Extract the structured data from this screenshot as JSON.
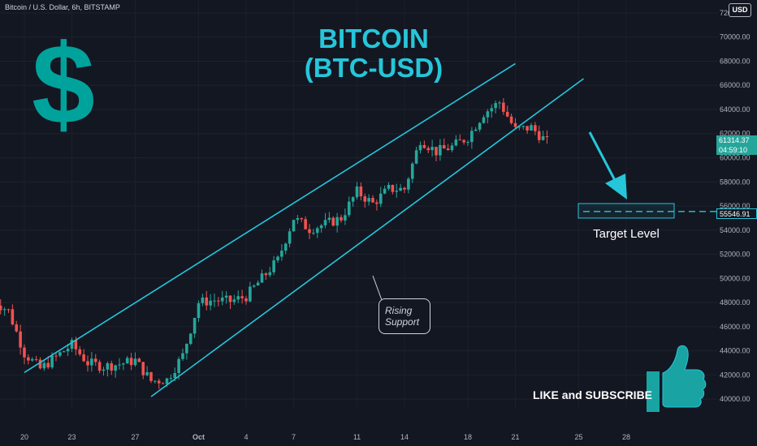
{
  "header": {
    "symbol_line": "Bitcoin / U.S. Dollar, 6h, BITSTAMP",
    "currency_badge": "USD"
  },
  "title": {
    "line1": "BITCOIN",
    "line2": "(BTC-USD)"
  },
  "dollar_sign": "$",
  "annotations": {
    "rising_support_line1": "Rising",
    "rising_support_line2": "Support",
    "target_level": "Target Level",
    "like_subscribe": "LIKE and SUBSCRIBE"
  },
  "price_tags": {
    "last_price": "61314.37",
    "countdown": "04:59:10",
    "target_price": "55546.91"
  },
  "colors": {
    "background": "#131722",
    "up": "#26a69a",
    "down": "#ef5350",
    "channel": "#26c6da",
    "accent_teal": "#00a39c"
  },
  "icons": {
    "thumb": "thumbs-up-icon",
    "arrow": "down-arrow-icon"
  },
  "chart_data": {
    "type": "candlestick",
    "timeframe": "6h",
    "yaxis_ticks": [
      40000,
      42000,
      44000,
      46000,
      48000,
      50000,
      52000,
      54000,
      56000,
      58000,
      60000,
      62000,
      64000,
      66000,
      68000,
      70000,
      72000
    ],
    "ylim": [
      39200,
      72400
    ],
    "xaxis_ticks": [
      "20",
      "23",
      "27",
      "Oct",
      "4",
      "7",
      "11",
      "14",
      "18",
      "21",
      "25",
      "28"
    ],
    "x_dates": [
      "2021-09-20",
      "2021-09-23",
      "2021-09-27",
      "2021-10-01",
      "2021-10-04",
      "2021-10-07",
      "2021-10-11",
      "2021-10-14",
      "2021-10-18",
      "2021-10-21",
      "2021-10-25",
      "2021-10-28"
    ],
    "approx_close_path": [
      [
        "2021-09-18",
        48200
      ],
      [
        "2021-09-19",
        47300
      ],
      [
        "2021-09-20",
        43800
      ],
      [
        "2021-09-21",
        42500
      ],
      [
        "2021-09-22",
        43500
      ],
      [
        "2021-09-23",
        44500
      ],
      [
        "2021-09-24",
        43000
      ],
      [
        "2021-09-25",
        42700
      ],
      [
        "2021-09-26",
        42900
      ],
      [
        "2021-09-27",
        43200
      ],
      [
        "2021-09-28",
        41500
      ],
      [
        "2021-09-29",
        41600
      ],
      [
        "2021-09-30",
        43600
      ],
      [
        "2021-10-01",
        48000
      ],
      [
        "2021-10-02",
        48200
      ],
      [
        "2021-10-03",
        48100
      ],
      [
        "2021-10-04",
        48500
      ],
      [
        "2021-10-05",
        50000
      ],
      [
        "2021-10-06",
        51500
      ],
      [
        "2021-10-07",
        55000
      ],
      [
        "2021-10-08",
        54100
      ],
      [
        "2021-10-09",
        54500
      ],
      [
        "2021-10-10",
        55000
      ],
      [
        "2021-10-11",
        57200
      ],
      [
        "2021-10-12",
        56200
      ],
      [
        "2021-10-13",
        57400
      ],
      [
        "2021-10-14",
        57400
      ],
      [
        "2021-10-15",
        61500
      ],
      [
        "2021-10-16",
        60500
      ],
      [
        "2021-10-17",
        60900
      ],
      [
        "2021-10-18",
        61700
      ],
      [
        "2021-10-19",
        63700
      ],
      [
        "2021-10-20",
        64600
      ],
      [
        "2021-10-21",
        62300
      ],
      [
        "2021-10-22",
        62500
      ],
      [
        "2021-10-23",
        61300
      ]
    ],
    "channel_upper": [
      [
        "2021-09-20",
        42200
      ],
      [
        "2021-10-21",
        67800
      ]
    ],
    "channel_lower": [
      [
        "2021-09-28",
        40200
      ],
      [
        "2021-10-23",
        64000
      ]
    ],
    "last_price": 61314.37,
    "target_price": 55546.91,
    "target_box": {
      "x_range": [
        "2021-10-23",
        "2021-10-26"
      ],
      "y_range": [
        55000,
        56200
      ]
    }
  }
}
